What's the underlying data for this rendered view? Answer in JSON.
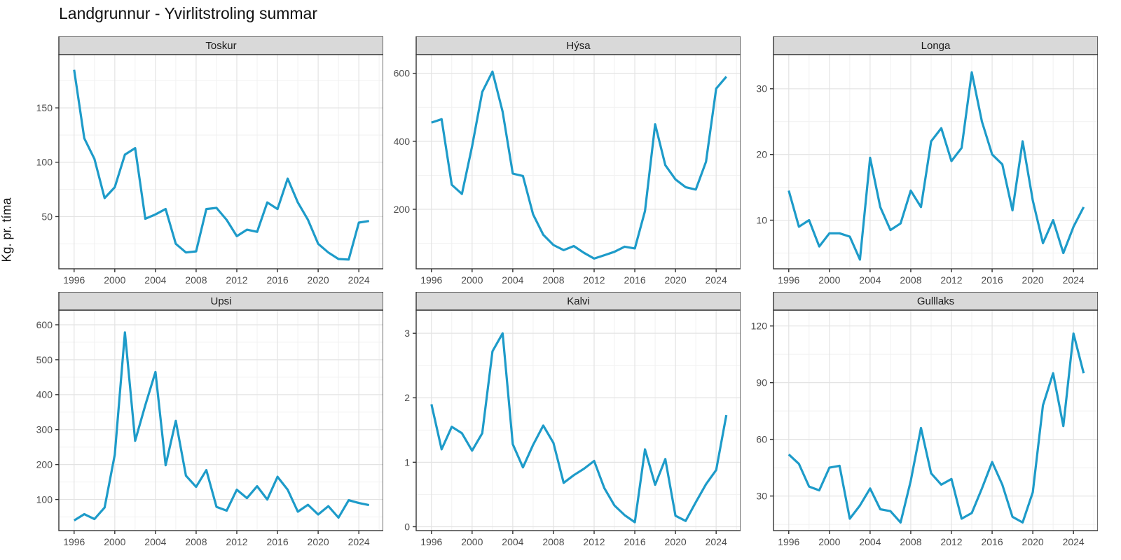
{
  "chart_data": {
    "type": "line",
    "title": "Landgrunnur - Yvirlitstroling summar",
    "ylabel": "Kg. pr. tíma",
    "legend_position": "none",
    "grid": "on",
    "line_color": "#1d9bc9",
    "panel_background": "#ffffff",
    "strip_background": "#d9d9d9",
    "border_color": "#333333",
    "tick_label_color": "#4d4d4d",
    "major_grid_color": "#e3e3e3",
    "minor_grid_color": "#f1f1f1",
    "x": [
      1996,
      1997,
      1998,
      1999,
      2000,
      2001,
      2002,
      2003,
      2004,
      2005,
      2006,
      2007,
      2008,
      2009,
      2010,
      2011,
      2012,
      2013,
      2014,
      2015,
      2016,
      2017,
      2018,
      2019,
      2020,
      2021,
      2022,
      2023,
      2024,
      2025
    ],
    "x_ticks": [
      1996,
      2000,
      2004,
      2008,
      2012,
      2016,
      2020,
      2024
    ],
    "x_minor": [
      1998,
      2002,
      2006,
      2010,
      2014,
      2018,
      2022,
      2026
    ],
    "x_domain": [
      1994.5,
      2026.4
    ],
    "facets": [
      {
        "label": "Toskur",
        "y_ticks": [
          50,
          100,
          150
        ],
        "y_minor": [
          25,
          75,
          125,
          175
        ],
        "y_domain": [
          2,
          199
        ],
        "values": [
          185,
          122,
          103,
          67,
          77,
          107,
          113,
          48,
          52,
          57,
          25,
          17,
          18,
          57,
          58,
          47,
          32,
          38,
          36,
          63,
          57,
          85,
          63,
          47,
          25,
          17,
          11,
          10.5,
          44.5,
          46
        ]
      },
      {
        "label": "Hýsa",
        "y_ticks": [
          200,
          400,
          600
        ],
        "y_minor": [
          100,
          300,
          500
        ],
        "y_domain": [
          25,
          655
        ],
        "values": [
          455,
          465,
          272,
          245,
          385,
          545,
          605,
          487,
          305,
          298,
          185,
          125,
          95,
          80,
          92,
          72,
          55,
          65,
          75,
          90,
          85,
          195,
          450,
          330,
          288,
          265,
          258,
          340,
          555,
          590
        ]
      },
      {
        "label": "Longa",
        "y_ticks": [
          10,
          20,
          30
        ],
        "y_minor": [
          5,
          15,
          25
        ],
        "y_domain": [
          2.6,
          35.2
        ],
        "values": [
          14.5,
          9,
          10,
          6,
          8,
          8,
          7.5,
          4,
          19.5,
          12,
          8.5,
          9.5,
          14.5,
          12,
          22,
          24,
          19,
          21,
          32.5,
          25,
          20,
          18.5,
          11.5,
          22,
          13,
          6.5,
          10,
          5,
          9,
          12
        ]
      },
      {
        "label": "Upsi",
        "y_ticks": [
          100,
          200,
          300,
          400,
          500,
          600
        ],
        "y_minor": [
          50,
          150,
          250,
          350,
          450,
          550
        ],
        "y_domain": [
          11,
          642
        ],
        "values": [
          40,
          58,
          44,
          77,
          228,
          578,
          268,
          370,
          465,
          198,
          325,
          168,
          136,
          184,
          79,
          68,
          128,
          104,
          138,
          100,
          165,
          128,
          65,
          85,
          57,
          81,
          48,
          98,
          90,
          84
        ]
      },
      {
        "label": "Kalvi",
        "y_ticks": [
          0,
          1,
          2,
          3
        ],
        "y_minor": [
          0.5,
          1.5,
          2.5
        ],
        "y_domain": [
          -0.06,
          3.36
        ],
        "values": [
          1.9,
          1.2,
          1.55,
          1.45,
          1.18,
          1.45,
          2.72,
          3.0,
          1.28,
          0.92,
          1.27,
          1.57,
          1.3,
          0.68,
          0.8,
          0.9,
          1.02,
          0.6,
          0.33,
          0.18,
          0.07,
          1.2,
          0.65,
          1.05,
          0.17,
          0.09,
          0.38,
          0.66,
          0.88,
          1.73
        ]
      },
      {
        "label": "Gulllaks",
        "y_ticks": [
          30,
          60,
          90,
          120
        ],
        "y_minor": [
          15,
          45,
          75,
          105
        ],
        "y_domain": [
          11.7,
          128.4
        ],
        "values": [
          52,
          47,
          35,
          33,
          45,
          46,
          18,
          25,
          34,
          23,
          22,
          16,
          38,
          66,
          42,
          36,
          39,
          18,
          21,
          34,
          48,
          36,
          19,
          16,
          32,
          78,
          95,
          67,
          116,
          95
        ]
      }
    ]
  }
}
